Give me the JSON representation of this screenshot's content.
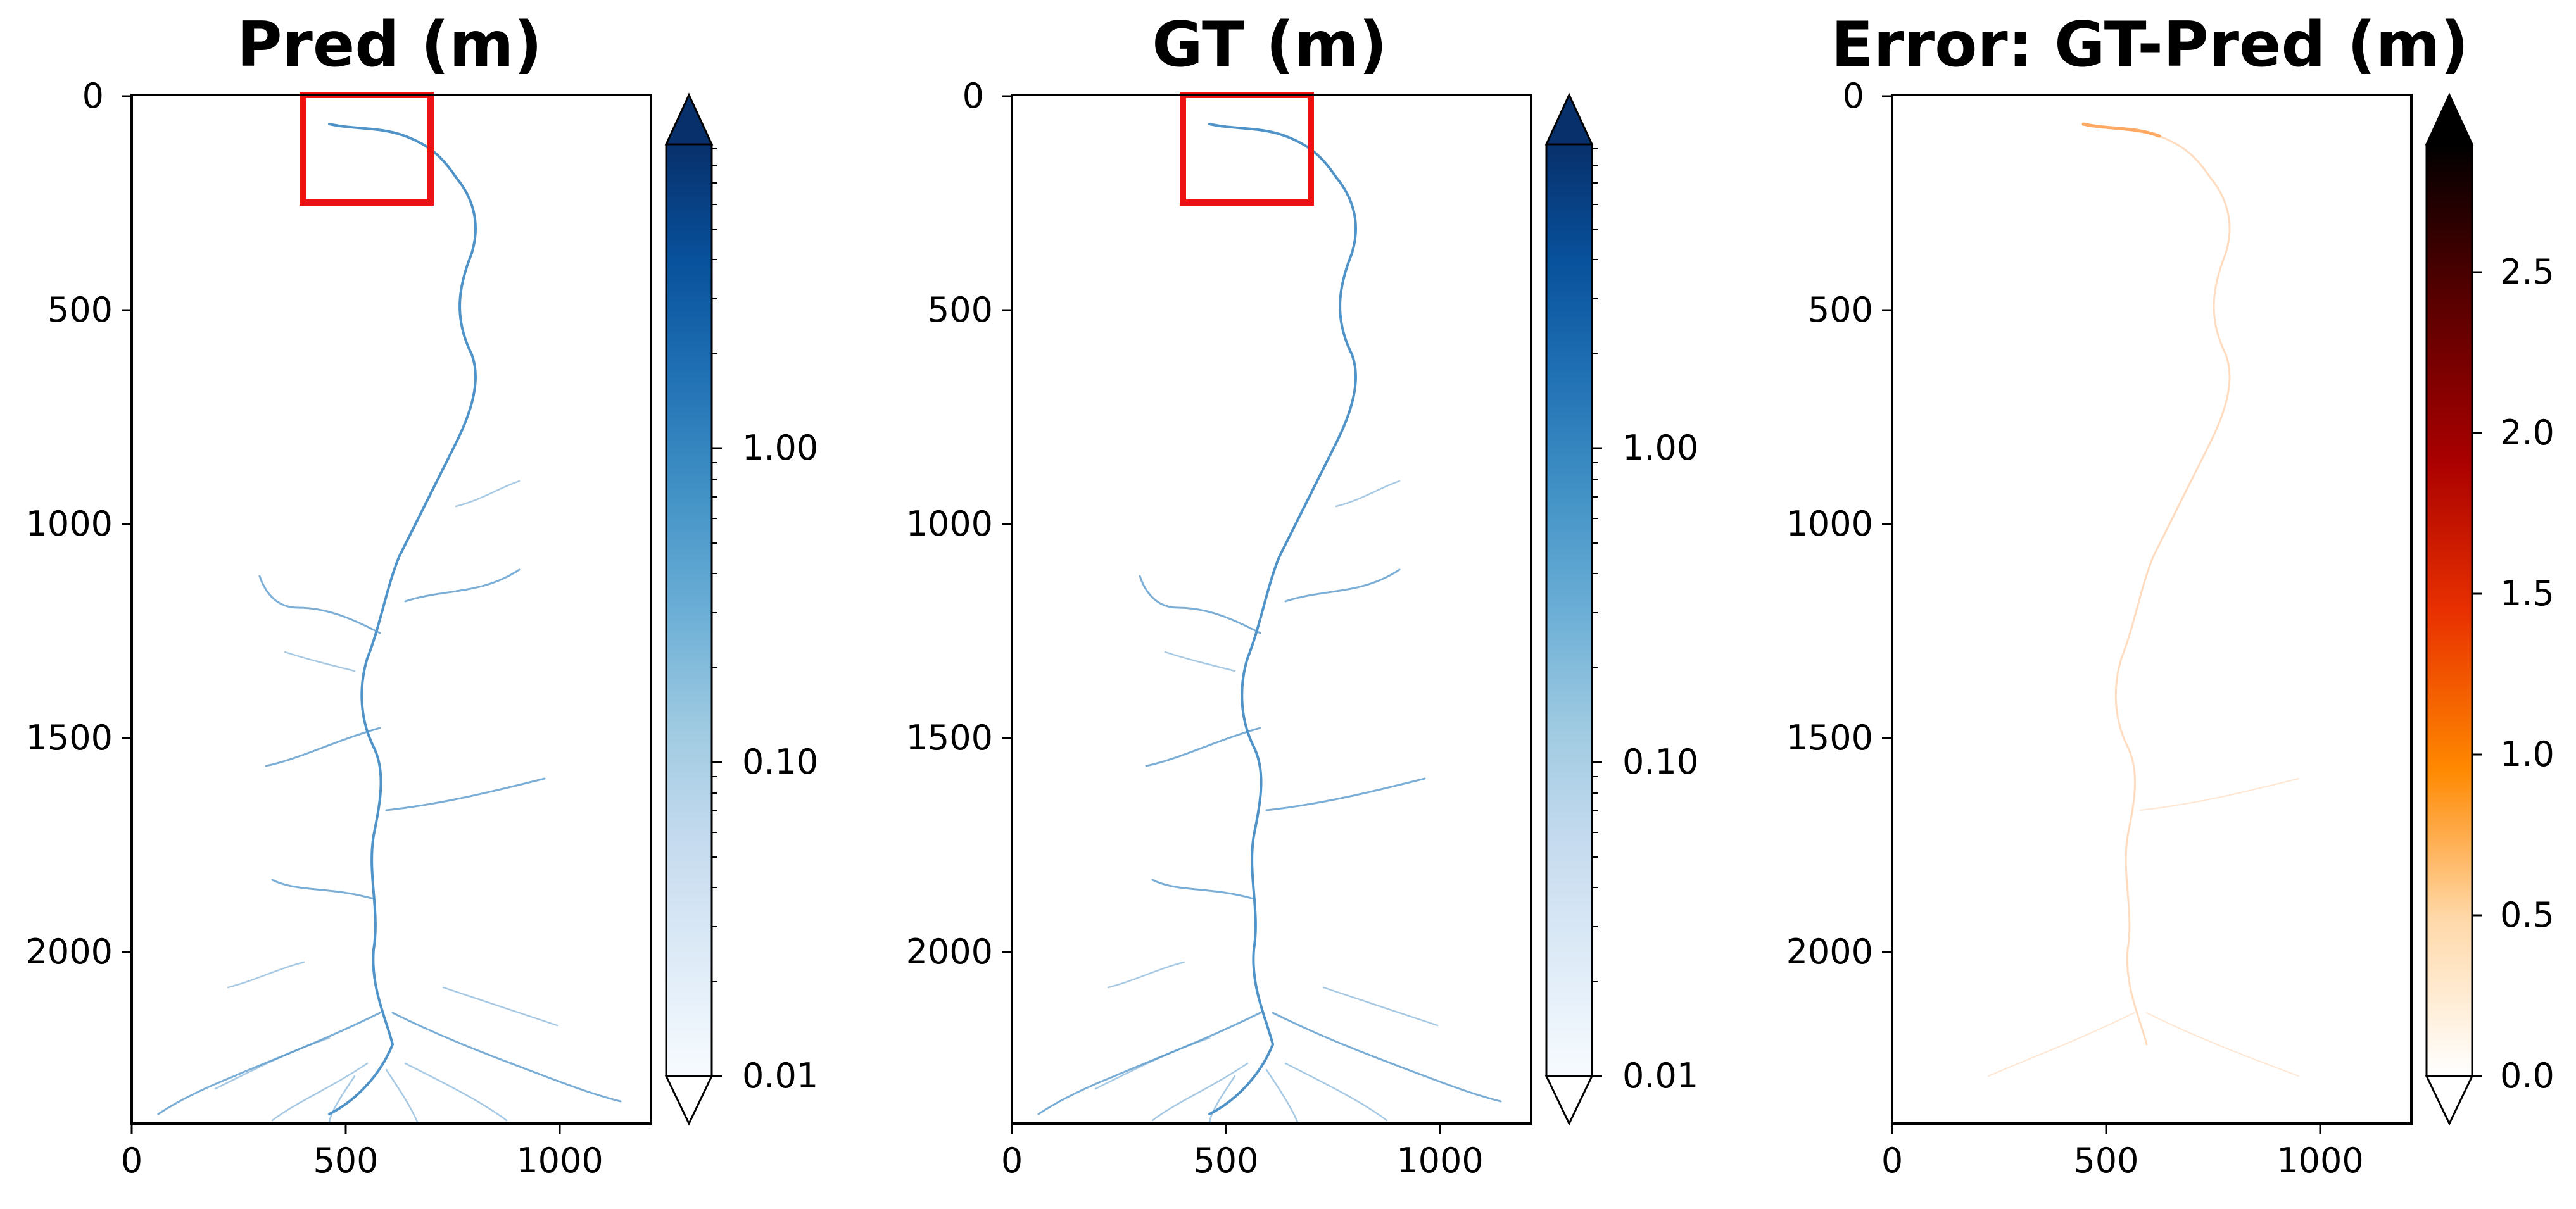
{
  "figure": {
    "panels": [
      {
        "title": "Pred (m)",
        "colormap": "Blues",
        "colorbar": {
          "scale": "log",
          "range": [
            0.01,
            5
          ],
          "extend": "both",
          "ticks": [
            0.01,
            0.1,
            1.0
          ],
          "tick_labels": [
            "0.01",
            "0.10",
            "1.00"
          ],
          "under_color": "#ffffff",
          "over_color": "#08306b"
        },
        "highlight_box": {
          "color": "#ee1111",
          "x": [
            400,
            700
          ],
          "y": [
            0,
            250
          ]
        }
      },
      {
        "title": "GT (m)",
        "colormap": "Blues",
        "colorbar": {
          "scale": "log",
          "range": [
            0.01,
            5
          ],
          "extend": "both",
          "ticks": [
            0.01,
            0.1,
            1.0
          ],
          "tick_labels": [
            "0.01",
            "0.10",
            "1.00"
          ],
          "under_color": "#ffffff",
          "over_color": "#08306b"
        },
        "highlight_box": {
          "color": "#ee1111",
          "x": [
            400,
            700
          ],
          "y": [
            0,
            250
          ]
        }
      },
      {
        "title": "Error: GT-Pred (m)",
        "colormap": "gist_heat_r",
        "colorbar": {
          "scale": "linear",
          "range": [
            0,
            2.9
          ],
          "extend": "both",
          "ticks": [
            0,
            0.5,
            1.0,
            1.5,
            2.0,
            2.5
          ],
          "tick_labels": [
            "0.0",
            "0.5",
            "1.0",
            "1.5",
            "2.0",
            "2.5"
          ],
          "under_color": "#ffffff",
          "over_color": "#000000"
        }
      }
    ]
  },
  "chart_data": [
    {
      "type": "heatmap",
      "title": "Pred (m)",
      "xlim": [
        0,
        1210
      ],
      "ylim": [
        2400,
        0
      ],
      "x_ticks": [
        0,
        500,
        1000
      ],
      "x_tick_labels": [
        "0",
        "500",
        "1000"
      ],
      "y_ticks": [
        0,
        500,
        1000,
        1500,
        2000
      ],
      "y_tick_labels": [
        "0",
        "500",
        "1000",
        "1500",
        "2000"
      ],
      "y_inverted": true,
      "content": "water depth map of a river network; main channel descends from the top (~x 700) to a delta of fanning channels at the bottom-left",
      "value_range": [
        0.01,
        5
      ],
      "colorbar_label": ""
    },
    {
      "type": "heatmap",
      "title": "GT (m)",
      "xlim": [
        0,
        1210
      ],
      "ylim": [
        2400,
        0
      ],
      "x_ticks": [
        0,
        500,
        1000
      ],
      "x_tick_labels": [
        "0",
        "500",
        "1000"
      ],
      "y_ticks": [
        0,
        500,
        1000,
        1500,
        2000
      ],
      "y_tick_labels": [
        "0",
        "500",
        "1000",
        "1500",
        "2000"
      ],
      "y_inverted": true,
      "content": "ground-truth water depth map, visually near-identical to the prediction",
      "value_range": [
        0.01,
        5
      ],
      "colorbar_label": ""
    },
    {
      "type": "heatmap",
      "title": "Error: GT-Pred (m)",
      "xlim": [
        0,
        1210
      ],
      "ylim": [
        2400,
        0
      ],
      "x_ticks": [
        0,
        500,
        1000
      ],
      "x_tick_labels": [
        "0",
        "500",
        "1000"
      ],
      "y_ticks": [
        0,
        500,
        1000,
        1500,
        2000
      ],
      "y_tick_labels": [
        "0",
        "500",
        "1000",
        "1500",
        "2000"
      ],
      "y_inverted": true,
      "content": "error map mostly near 0; faint orange traces (about 0.1-0.6 m) along the main channel",
      "value_range": [
        0,
        2.9
      ],
      "colorbar_label": ""
    }
  ]
}
